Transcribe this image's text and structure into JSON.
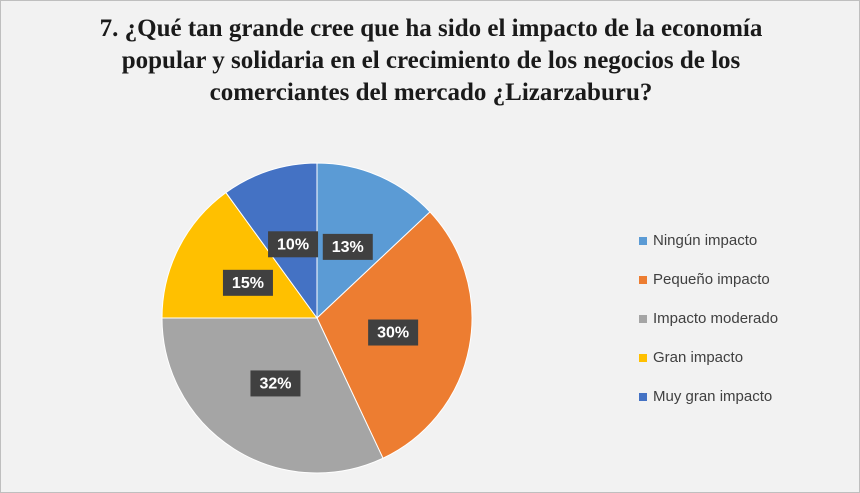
{
  "chart_data": {
    "type": "pie",
    "title": "7. ¿Qué tan grande cree que ha sido el impacto de la economía popular y solidaria en el crecimiento de los negocios de los comerciantes del mercado ¿Lizarzaburu?",
    "categories": [
      "Ningún impacto",
      "Pequeño impacto",
      "Impacto moderado",
      "Gran impacto",
      "Muy gran impacto"
    ],
    "values": [
      13,
      30,
      32,
      15,
      10
    ],
    "value_labels": [
      "13%",
      "30%",
      "32%",
      "15%",
      "10%"
    ],
    "colors": [
      "#5b9bd5",
      "#ed7d31",
      "#a5a5a5",
      "#ffc000",
      "#4472c4"
    ],
    "legend": "right"
  }
}
